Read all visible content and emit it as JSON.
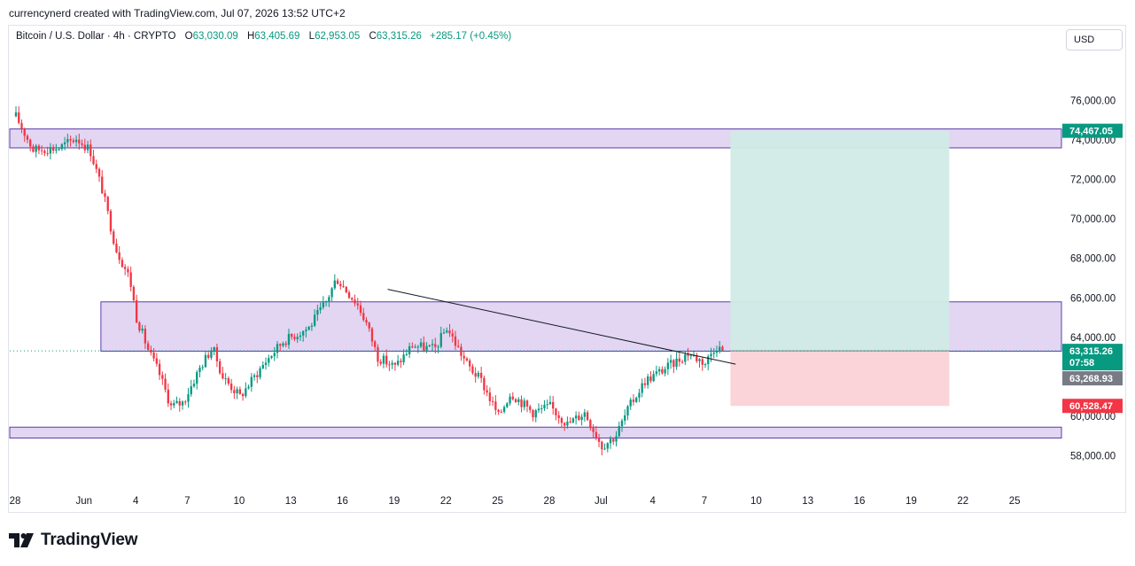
{
  "header": {
    "title": "currencynerd created with TradingView.com, Jul 07, 2026 13:52 UTC+2"
  },
  "legend": {
    "symbol": "Bitcoin / U.S. Dollar · 4h · CRYPTO",
    "open_label": "O",
    "open": "63,030.09",
    "high_label": "H",
    "high": "63,405.69",
    "low_label": "L",
    "low": "62,953.05",
    "close_label": "C",
    "close": "63,315.26",
    "change": "+285.17 (+0.45%)"
  },
  "currency_button": "USD",
  "footer": {
    "brand": "TradingView"
  },
  "colors": {
    "up": "#089981",
    "down": "#f23645",
    "zone_fill": "#e2d6f2",
    "zone_border": "#5b3fa8",
    "target_fill": "#d1ebe6",
    "stop_fill": "#fad4d8"
  },
  "chart_data": {
    "type": "candlestick",
    "timeframe": "4h",
    "y_axis": {
      "ticks": [
        58000,
        60000,
        62000,
        64000,
        66000,
        68000,
        70000,
        72000,
        74000,
        76000
      ],
      "tick_labels": [
        "58,000.00",
        "60,000.00",
        "62,000.00",
        "64,000.00",
        "66,000.00",
        "68,000.00",
        "70,000.00",
        "72,000.00",
        "74,000.00",
        "76,000.00"
      ],
      "range": [
        56500,
        78400
      ]
    },
    "x_axis": {
      "range_days": [
        -0.2,
        31.8
      ],
      "ticks": [
        {
          "label": "28",
          "day": 0
        },
        {
          "label": "Jun",
          "day": 4
        },
        {
          "label": "4",
          "day": 7
        },
        {
          "label": "7",
          "day": 10
        },
        {
          "label": "10",
          "day": 13
        },
        {
          "label": "13",
          "day": 16
        },
        {
          "label": "16",
          "day": 19
        },
        {
          "label": "19",
          "day": 22
        },
        {
          "label": "22",
          "day": 25
        },
        {
          "label": "25",
          "day": 28
        },
        {
          "label": "28",
          "day": 31
        },
        {
          "label": "Jul",
          "day": 34
        },
        {
          "label": "4",
          "day": 37
        },
        {
          "label": "7",
          "day": 40
        },
        {
          "label": "10",
          "day": 43
        },
        {
          "label": "13",
          "day": 46
        },
        {
          "label": "16",
          "day": 49
        },
        {
          "label": "19",
          "day": 52
        },
        {
          "label": "22",
          "day": 55
        },
        {
          "label": "25",
          "day": 58
        }
      ]
    },
    "price_path": [
      [
        0,
        75200
      ],
      [
        1,
        73500
      ],
      [
        2.5,
        73600
      ],
      [
        3.5,
        74100
      ],
      [
        4.3,
        73500
      ],
      [
        5,
        71500
      ],
      [
        5.8,
        68500
      ],
      [
        6.6,
        67000
      ],
      [
        7,
        65000
      ],
      [
        7.7,
        63300
      ],
      [
        8.3,
        62200
      ],
      [
        9,
        60500
      ],
      [
        9.7,
        60700
      ],
      [
        10.7,
        62500
      ],
      [
        11.4,
        63500
      ],
      [
        12,
        62000
      ],
      [
        13,
        61000
      ],
      [
        14.5,
        62800
      ],
      [
        15.5,
        63800
      ],
      [
        17,
        64500
      ],
      [
        18,
        65800
      ],
      [
        18.6,
        67000
      ],
      [
        19.8,
        65700
      ],
      [
        20.3,
        64800
      ],
      [
        21,
        63000
      ],
      [
        22,
        62500
      ],
      [
        23,
        63600
      ],
      [
        24.3,
        63400
      ],
      [
        25,
        64500
      ],
      [
        25.5,
        63700
      ],
      [
        26.2,
        62600
      ],
      [
        27,
        61800
      ],
      [
        28,
        60000
      ],
      [
        28.7,
        61200
      ],
      [
        30,
        60200
      ],
      [
        31,
        60500
      ],
      [
        32,
        59600
      ],
      [
        33,
        60200
      ],
      [
        34,
        58500
      ],
      [
        34.8,
        59000
      ],
      [
        35.6,
        60500
      ],
      [
        36.5,
        61800
      ],
      [
        38,
        62600
      ],
      [
        39,
        63200
      ],
      [
        40,
        62700
      ],
      [
        40.6,
        63600
      ],
      [
        41,
        63315
      ]
    ],
    "last_price": 63315.26,
    "last_price_label": "63,315.26",
    "countdown": "07:58",
    "prev_close_label": "63,268.93",
    "zones": [
      {
        "name": "supply-zone",
        "from": 73600,
        "to": 74560,
        "start_day": 0
      },
      {
        "name": "resistance-zone",
        "from": 63300,
        "to": 65800,
        "start_day": 7.5
      },
      {
        "name": "support-zone",
        "from": 58900,
        "to": 59450,
        "start_day": 0
      }
    ],
    "trendline": {
      "start": [
        24.5,
        66300
      ],
      "end": [
        41.4,
        63000
      ]
    },
    "position": {
      "type": "long",
      "entry": 63315.26,
      "target": 74467.05,
      "target_label": "74,467.05",
      "stop": 60528.47,
      "stop_label": "60,528.47",
      "start_day": 41.1,
      "end_day": 53.9
    },
    "grid": false
  }
}
